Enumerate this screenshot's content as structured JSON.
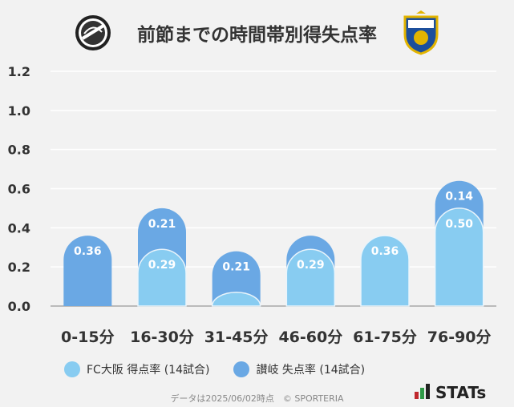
{
  "title": "前節までの時間帯別得失点率",
  "source_text": "データは2025/06/02時点　© SPORTERIA",
  "stats_label": "STATs",
  "logos": {
    "left": "FC Osaka crest",
    "right": "Kamatamare Sanuki crest"
  },
  "colors": {
    "fc_osaka": "#88ccf1",
    "sanuki": "#6aa8e4",
    "background": "#f2f2f2"
  },
  "chart_data": {
    "type": "bar",
    "stacked": true,
    "categories": [
      "0-15分",
      "16-30分",
      "31-45分",
      "46-60分",
      "61-75分",
      "76-90分"
    ],
    "series": [
      {
        "name": "FC大阪 得点率 (14試合)",
        "values": [
          0.0,
          0.29,
          0.07,
          0.29,
          0.36,
          0.5
        ],
        "labels": [
          "",
          "0.29",
          "",
          "0.29",
          "0.36",
          "0.50"
        ]
      },
      {
        "name": "讃岐 失点率 (14試合)",
        "values": [
          0.36,
          0.21,
          0.21,
          0.07,
          0.0,
          0.14
        ],
        "labels": [
          "0.36",
          "0.21",
          "0.21",
          "",
          "",
          "0.14"
        ]
      }
    ],
    "yticks": [
      "0.0",
      "0.2",
      "0.4",
      "0.6",
      "0.8",
      "1.0",
      "1.2"
    ],
    "ylim": [
      0,
      1.2
    ],
    "grid": true,
    "legend_position": "bottom"
  }
}
